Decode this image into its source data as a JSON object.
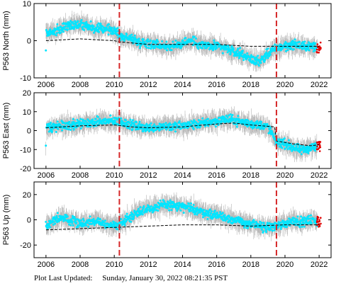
{
  "footer": {
    "label": "Plot Last Updated:",
    "timestamp": "Sunday, January 30, 2022 08:21:35 PST"
  },
  "colors": {
    "data": "#00e5ff",
    "error_bars": "#b4b4b4",
    "model": "#000000",
    "event_lines": "#d62728",
    "recent": "#e00000"
  },
  "chart_data": [
    {
      "type": "scatter",
      "ylabel": "P563 North (mm)",
      "xlim": [
        2005.3,
        2022.7
      ],
      "ylim": [
        -10,
        10
      ],
      "yticks": [
        -10,
        0,
        10
      ],
      "xticks": [
        2006,
        2008,
        2010,
        2012,
        2014,
        2016,
        2018,
        2020,
        2022
      ],
      "event_lines_x": [
        2010.3,
        2019.5
      ],
      "data_points": [
        [
          2006.0,
          2.0
        ],
        [
          2006.5,
          2.5
        ],
        [
          2007.0,
          3.5
        ],
        [
          2007.5,
          4.5
        ],
        [
          2008.0,
          4.5
        ],
        [
          2008.5,
          4.0
        ],
        [
          2009.0,
          3.0
        ],
        [
          2009.5,
          3.5
        ],
        [
          2010.0,
          2.5
        ],
        [
          2010.5,
          1.0
        ],
        [
          2011.0,
          0.5
        ],
        [
          2011.5,
          -0.5
        ],
        [
          2012.0,
          -0.5
        ],
        [
          2012.5,
          -1.0
        ],
        [
          2013.0,
          -1.5
        ],
        [
          2013.5,
          -1.5
        ],
        [
          2014.0,
          -0.5
        ],
        [
          2014.5,
          0.0
        ],
        [
          2015.0,
          -1.0
        ],
        [
          2015.5,
          -1.5
        ],
        [
          2016.0,
          -1.5
        ],
        [
          2016.5,
          -2.0
        ],
        [
          2017.0,
          -3.0
        ],
        [
          2017.5,
          -3.5
        ],
        [
          2018.0,
          -5.0
        ],
        [
          2018.5,
          -5.5
        ],
        [
          2019.0,
          -3.5
        ],
        [
          2019.5,
          -2.0
        ],
        [
          2020.0,
          -1.5
        ],
        [
          2020.5,
          -1.0
        ],
        [
          2021.0,
          -1.5
        ],
        [
          2021.5,
          -1.5
        ],
        [
          2022.0,
          -2.0
        ]
      ],
      "model_line": [
        [
          2006.0,
          0.0
        ],
        [
          2008.0,
          0.5
        ],
        [
          2010.0,
          0.0
        ],
        [
          2010.3,
          -0.3
        ],
        [
          2012.0,
          -1.0
        ],
        [
          2014.0,
          -1.0
        ],
        [
          2016.0,
          -1.0
        ],
        [
          2018.0,
          -1.5
        ],
        [
          2019.5,
          -1.5
        ],
        [
          2021.0,
          -1.5
        ],
        [
          2022.0,
          -1.5
        ]
      ]
    },
    {
      "type": "scatter",
      "ylabel": "P563 East (mm)",
      "xlim": [
        2005.3,
        2022.7
      ],
      "ylim": [
        -20,
        20
      ],
      "yticks": [
        -20,
        -10,
        0,
        10,
        20
      ],
      "xticks": [
        2006,
        2008,
        2010,
        2012,
        2014,
        2016,
        2018,
        2020,
        2022
      ],
      "event_lines_x": [
        2010.3,
        2019.5
      ],
      "data_points": [
        [
          2006.0,
          1.5
        ],
        [
          2006.5,
          2.0
        ],
        [
          2007.0,
          2.5
        ],
        [
          2007.5,
          3.0
        ],
        [
          2008.0,
          3.5
        ],
        [
          2008.5,
          4.0
        ],
        [
          2009.0,
          4.5
        ],
        [
          2009.5,
          5.0
        ],
        [
          2010.0,
          5.0
        ],
        [
          2010.5,
          4.5
        ],
        [
          2011.0,
          3.0
        ],
        [
          2011.5,
          2.0
        ],
        [
          2012.0,
          1.5
        ],
        [
          2012.5,
          2.0
        ],
        [
          2013.0,
          2.5
        ],
        [
          2013.5,
          2.0
        ],
        [
          2014.0,
          2.5
        ],
        [
          2014.5,
          3.0
        ],
        [
          2015.0,
          3.5
        ],
        [
          2015.5,
          4.5
        ],
        [
          2016.0,
          5.0
        ],
        [
          2016.5,
          6.0
        ],
        [
          2017.0,
          5.5
        ],
        [
          2017.5,
          4.5
        ],
        [
          2018.0,
          3.5
        ],
        [
          2018.5,
          3.0
        ],
        [
          2019.0,
          2.0
        ],
        [
          2019.5,
          -6.0
        ],
        [
          2020.0,
          -7.0
        ],
        [
          2020.5,
          -9.0
        ],
        [
          2021.0,
          -10.5
        ],
        [
          2021.5,
          -9.0
        ],
        [
          2022.0,
          -8.0
        ]
      ],
      "model_line": [
        [
          2006.0,
          1.5
        ],
        [
          2008.0,
          2.5
        ],
        [
          2010.0,
          3.0
        ],
        [
          2011.0,
          2.0
        ],
        [
          2012.0,
          1.5
        ],
        [
          2014.0,
          2.0
        ],
        [
          2016.0,
          3.5
        ],
        [
          2017.0,
          4.0
        ],
        [
          2018.0,
          3.0
        ],
        [
          2019.4,
          2.0
        ],
        [
          2019.5,
          -5.5
        ],
        [
          2020.5,
          -7.0
        ],
        [
          2021.5,
          -8.0
        ],
        [
          2022.0,
          -7.5
        ]
      ]
    },
    {
      "type": "scatter",
      "ylabel": "P563 Up (mm)",
      "xlim": [
        2005.3,
        2022.7
      ],
      "ylim": [
        -30,
        30
      ],
      "yticks": [
        -20,
        0,
        20
      ],
      "xticks": [
        2006,
        2008,
        2010,
        2012,
        2014,
        2016,
        2018,
        2020,
        2022
      ],
      "event_lines_x": [
        2010.3,
        2019.5
      ],
      "data_points": [
        [
          2006.0,
          -5.0
        ],
        [
          2006.5,
          0.0
        ],
        [
          2007.0,
          2.0
        ],
        [
          2007.5,
          0.0
        ],
        [
          2008.0,
          -3.0
        ],
        [
          2008.5,
          -2.0
        ],
        [
          2009.0,
          0.0
        ],
        [
          2009.5,
          -4.0
        ],
        [
          2010.0,
          -5.0
        ],
        [
          2010.5,
          -2.0
        ],
        [
          2011.0,
          3.0
        ],
        [
          2011.5,
          7.0
        ],
        [
          2012.0,
          9.0
        ],
        [
          2012.5,
          10.0
        ],
        [
          2013.0,
          12.0
        ],
        [
          2013.5,
          11.0
        ],
        [
          2014.0,
          10.0
        ],
        [
          2014.5,
          9.0
        ],
        [
          2015.0,
          7.0
        ],
        [
          2015.5,
          5.0
        ],
        [
          2016.0,
          4.0
        ],
        [
          2016.5,
          2.0
        ],
        [
          2017.0,
          0.0
        ],
        [
          2017.5,
          -2.0
        ],
        [
          2018.0,
          -4.0
        ],
        [
          2018.5,
          -5.0
        ],
        [
          2019.0,
          -6.0
        ],
        [
          2019.5,
          -5.0
        ],
        [
          2020.0,
          -3.0
        ],
        [
          2020.5,
          0.0
        ],
        [
          2021.0,
          -2.0
        ],
        [
          2021.5,
          0.0
        ],
        [
          2022.0,
          -2.0
        ]
      ],
      "model_line": [
        [
          2006.0,
          -8.0
        ],
        [
          2008.0,
          -7.0
        ],
        [
          2010.0,
          -6.0
        ],
        [
          2012.0,
          -5.0
        ],
        [
          2014.0,
          -4.0
        ],
        [
          2016.0,
          -4.0
        ],
        [
          2018.0,
          -5.0
        ],
        [
          2020.0,
          -4.0
        ],
        [
          2022.0,
          -4.0
        ]
      ]
    }
  ]
}
